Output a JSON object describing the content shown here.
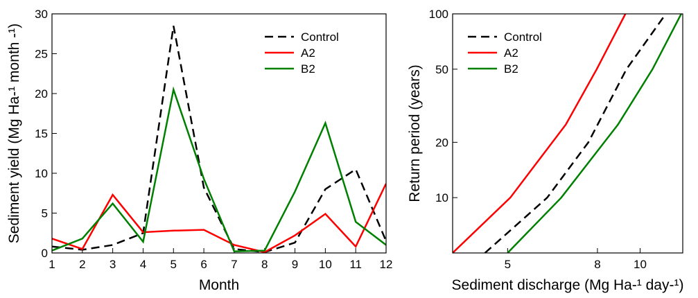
{
  "chart_data": [
    {
      "type": "line",
      "xlabel": "Month",
      "ylabel": "Sediment yield (Mg Ha-¹ month -¹)",
      "x": [
        1,
        2,
        3,
        4,
        5,
        6,
        7,
        8,
        9,
        10,
        11,
        12
      ],
      "xlim": [
        1,
        12
      ],
      "xticks": [
        1,
        2,
        3,
        4,
        5,
        6,
        7,
        8,
        9,
        10,
        11,
        12
      ],
      "ylim": [
        0,
        30
      ],
      "yticks": [
        0,
        5,
        10,
        15,
        20,
        25,
        30
      ],
      "legend": "upper right",
      "series": [
        {
          "name": "Control",
          "color": "#000000",
          "linestyle": "dashed",
          "values": [
            0.8,
            0.4,
            1.0,
            2.5,
            28.5,
            8.2,
            0.5,
            0.1,
            1.3,
            8.0,
            10.5,
            1.5
          ]
        },
        {
          "name": "A2",
          "color": "#ff0000",
          "linestyle": "solid",
          "values": [
            1.8,
            0.5,
            7.3,
            2.6,
            2.8,
            2.9,
            1.0,
            0.1,
            2.2,
            4.9,
            0.8,
            8.7
          ]
        },
        {
          "name": "B2",
          "color": "#008000",
          "linestyle": "solid",
          "values": [
            0.3,
            1.8,
            6.2,
            1.4,
            20.5,
            9.3,
            0.2,
            0.3,
            7.7,
            16.3,
            3.9,
            1.0
          ]
        }
      ]
    },
    {
      "type": "line",
      "xlabel": "Sediment discharge (Mg Ha-¹ day-¹)",
      "ylabel": "Return period (years)",
      "log_x": true,
      "log_y": true,
      "xlim": [
        3.75,
        12.5
      ],
      "xticks": [
        5,
        8,
        10
      ],
      "ylim": [
        5,
        100
      ],
      "yticks": [
        10,
        20,
        50,
        100
      ],
      "legend": "upper left",
      "series": [
        {
          "name": "Control",
          "color": "#000000",
          "linestyle": "dashed",
          "x": [
            4.44,
            6.15,
            7.63,
            9.31,
            11.44
          ],
          "values": [
            5,
            10,
            20,
            50,
            100
          ]
        },
        {
          "name": "A2",
          "color": "#ff0000",
          "linestyle": "solid",
          "x": [
            3.75,
            5.07,
            6.78,
            7.97,
            9.26
          ],
          "values": [
            5,
            10,
            25,
            50,
            100
          ]
        },
        {
          "name": "B2",
          "color": "#008000",
          "linestyle": "solid",
          "x": [
            5,
            6.62,
            8.91,
            10.67,
            12.4
          ],
          "values": [
            5,
            10,
            25,
            50,
            100
          ]
        }
      ]
    }
  ]
}
